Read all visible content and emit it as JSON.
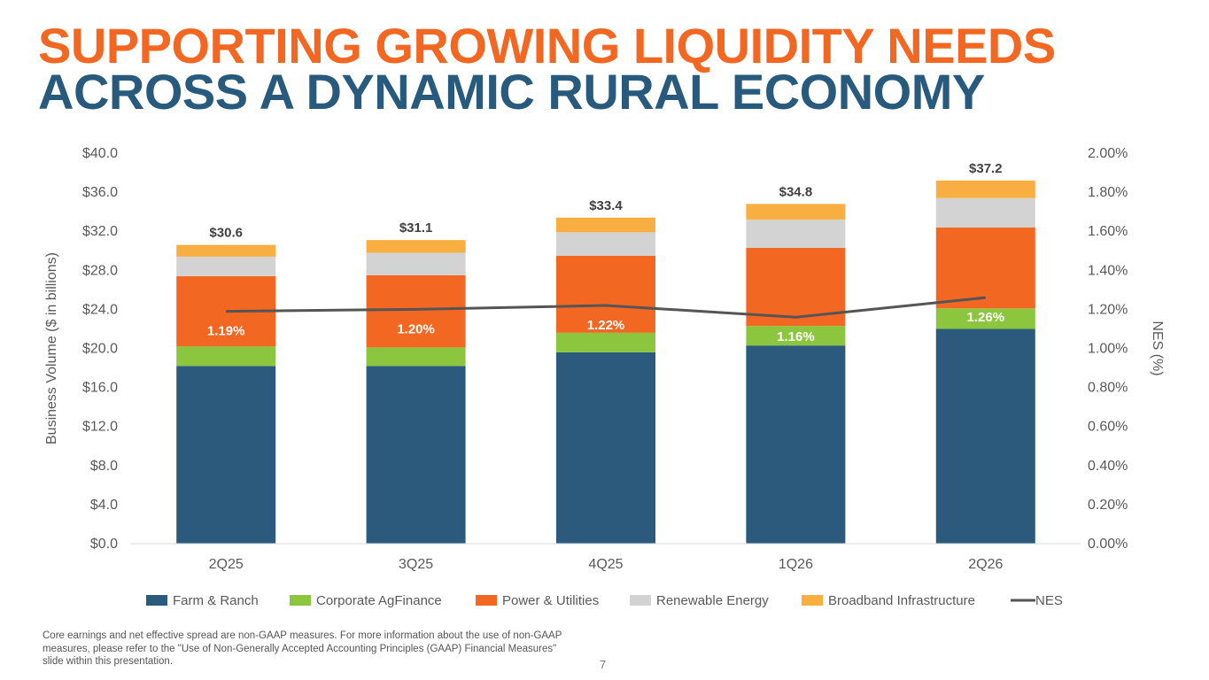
{
  "title": {
    "line1": "SUPPORTING GROWING LIQUIDITY NEEDS",
    "line2": "ACROSS A DYNAMIC RURAL ECONOMY",
    "line1_color": "#F26722",
    "line2_color": "#275A7C"
  },
  "chart_data": {
    "type": "bar",
    "stacked": true,
    "categories": [
      "2Q25",
      "3Q25",
      "4Q25",
      "1Q26",
      "2Q26"
    ],
    "series": [
      {
        "name": "Farm & Ranch",
        "color": "#2B5A7C",
        "values": [
          18.2,
          18.2,
          19.6,
          20.3,
          22.0
        ]
      },
      {
        "name": "Corporate AgFinance",
        "color": "#8CC63F",
        "values": [
          2.0,
          1.9,
          2.0,
          2.0,
          2.1
        ]
      },
      {
        "name": "Power & Utilities",
        "color": "#F26722",
        "values": [
          7.2,
          7.4,
          7.9,
          8.0,
          8.3
        ]
      },
      {
        "name": "Renewable Energy",
        "color": "#D3D3D3",
        "values": [
          2.0,
          2.3,
          2.4,
          2.9,
          3.0
        ]
      },
      {
        "name": "Broadband Infrastructure",
        "color": "#F9AE42",
        "values": [
          1.2,
          1.3,
          1.5,
          1.6,
          1.8
        ]
      }
    ],
    "totals": [
      30.6,
      31.1,
      33.4,
      34.8,
      37.2
    ],
    "total_labels": [
      "$30.6",
      "$31.1",
      "$33.4",
      "$34.8",
      "$37.2"
    ],
    "line_series": {
      "name": "NES",
      "color": "#555555",
      "axis": "right",
      "values": [
        1.19,
        1.2,
        1.22,
        1.16,
        1.26
      ],
      "labels": [
        "1.19%",
        "1.20%",
        "1.22%",
        "1.16%",
        "1.26%"
      ]
    },
    "ylabel": "Business Volume ($ in billions)",
    "y2label": "NES (%)",
    "ylim": [
      0,
      40
    ],
    "y2lim": [
      0,
      2
    ],
    "yticks": [
      "$0.0",
      "$4.0",
      "$8.0",
      "$12.0",
      "$16.0",
      "$20.0",
      "$24.0",
      "$28.0",
      "$32.0",
      "$36.0",
      "$40.0"
    ],
    "y2ticks": [
      "0.00%",
      "0.20%",
      "0.40%",
      "0.60%",
      "0.80%",
      "1.00%",
      "1.20%",
      "1.40%",
      "1.60%",
      "1.80%",
      "2.00%"
    ],
    "grid": false,
    "legend": "bottom"
  },
  "footnote": "Core earnings and net effective spread are non-GAAP measures. For more information about the use of non-GAAP measures, please refer to the \"Use of Non-Generally Accepted Accounting Principles (GAAP) Financial Measures\" slide within this presentation.",
  "page_number": "7"
}
